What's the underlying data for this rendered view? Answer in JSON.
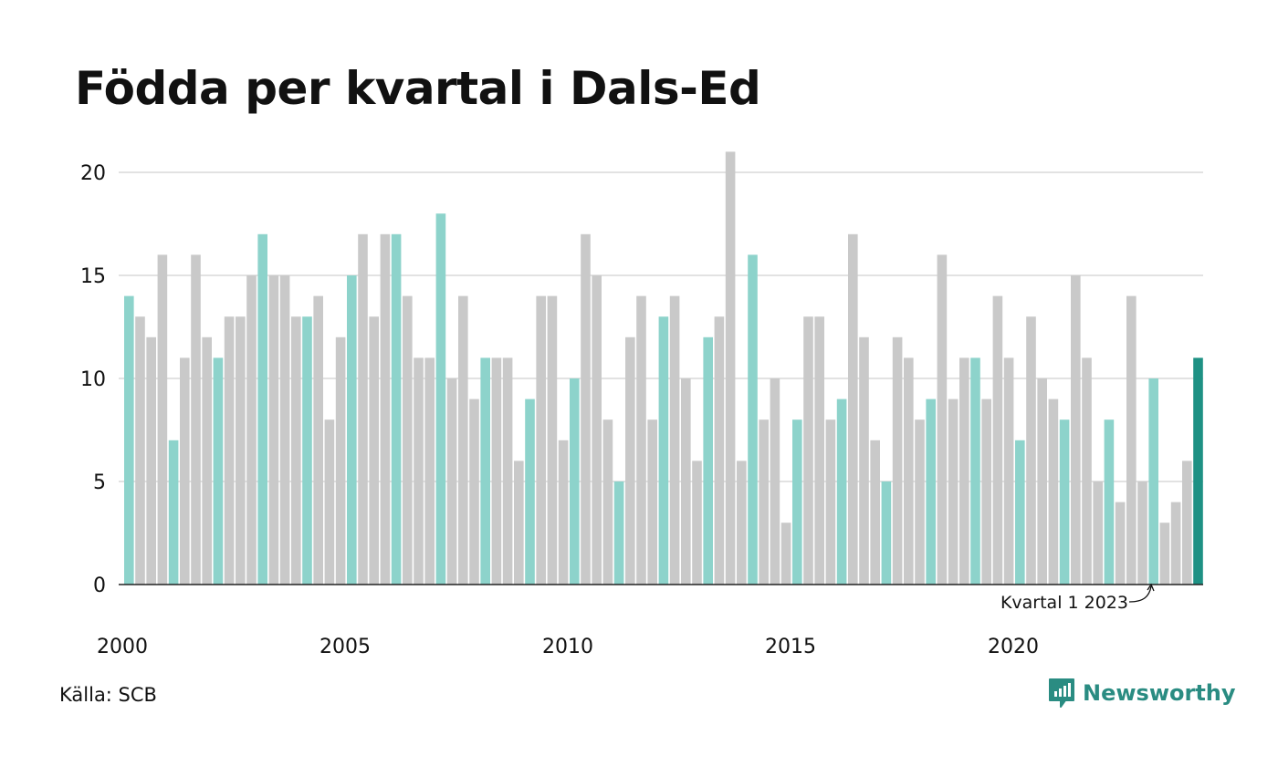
{
  "title": "Födda per kvartal i Dals-Ed",
  "source": "Källa: SCB",
  "brand": "Newsworthy",
  "colors": {
    "q1": "#8dd3cb",
    "other": "#c9c9c9",
    "highlight": "#1e9184",
    "grid": "#e2e2e2",
    "axis": "#222222",
    "brand": "#2a8c82"
  },
  "chart_data": {
    "type": "bar",
    "annotation": "Kvartal 1 2023",
    "ylim": [
      0,
      21
    ],
    "y_ticks": [
      0,
      5,
      10,
      15,
      20
    ],
    "x_ticks": [
      "2000",
      "2005",
      "2010",
      "2015",
      "2020"
    ],
    "grid": true,
    "start_year": 2000,
    "values": [
      14,
      13,
      12,
      16,
      7,
      11,
      16,
      12,
      11,
      13,
      13,
      15,
      17,
      15,
      15,
      13,
      13,
      14,
      8,
      12,
      15,
      17,
      13,
      17,
      17,
      14,
      11,
      11,
      18,
      10,
      14,
      9,
      11,
      11,
      11,
      6,
      9,
      14,
      14,
      7,
      10,
      17,
      15,
      8,
      5,
      12,
      14,
      8,
      13,
      14,
      10,
      6,
      12,
      13,
      21,
      6,
      16,
      8,
      10,
      3,
      8,
      13,
      13,
      8,
      9,
      17,
      12,
      7,
      5,
      12,
      11,
      8,
      9,
      16,
      9,
      11,
      11,
      9,
      14,
      11,
      7,
      13,
      10,
      9,
      8,
      15,
      11,
      5,
      8,
      4,
      14,
      5,
      10,
      3,
      4,
      6,
      11
    ]
  }
}
